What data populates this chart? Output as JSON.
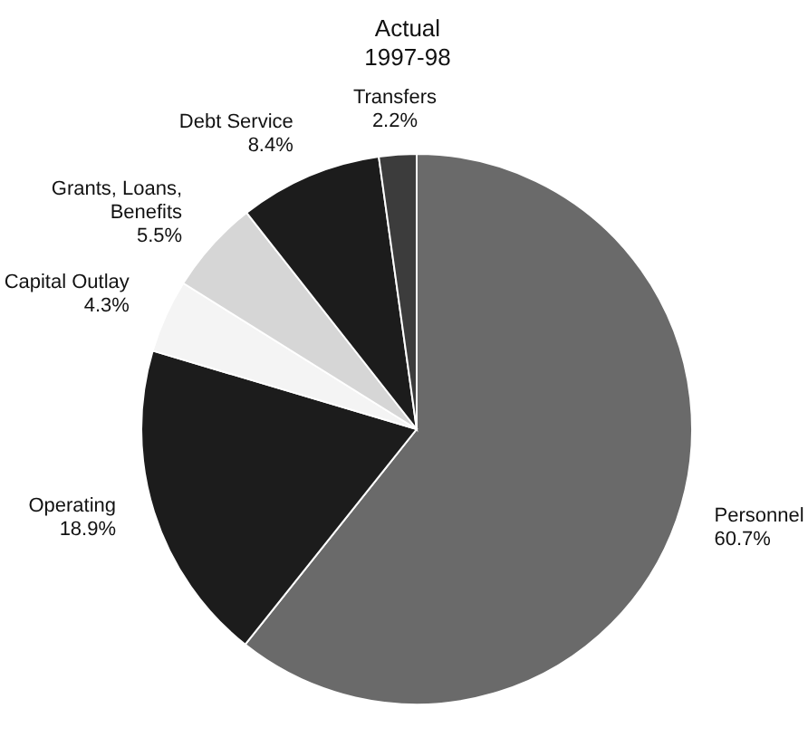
{
  "chart_data": {
    "type": "pie",
    "title": "Actual\n1997-98",
    "categories": [
      "Personnel",
      "Operating",
      "Capital Outlay",
      "Grants, Loans,\nBenefits",
      "Debt Service",
      "Transfers"
    ],
    "values": [
      60.7,
      18.9,
      4.3,
      5.5,
      8.4,
      2.2
    ],
    "value_labels": [
      "60.7%",
      "18.9%",
      "4.3%",
      "5.5%",
      "8.4%",
      "2.2%"
    ],
    "colors": [
      "#6a6a6a",
      "#1c1c1c",
      "#f4f4f4",
      "#d6d6d6",
      "#1c1c1c",
      "#3c3c3c"
    ],
    "legend": false
  }
}
